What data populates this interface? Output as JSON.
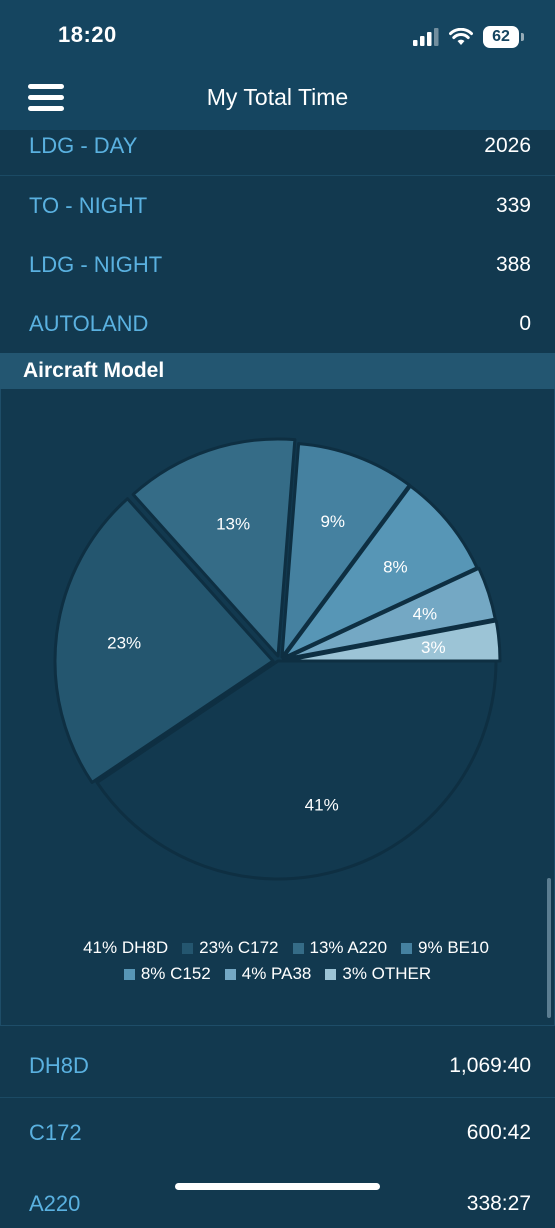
{
  "status_bar": {
    "time": "18:20",
    "battery": "62"
  },
  "nav": {
    "title": "My Total Time"
  },
  "stats": [
    {
      "label": "LDG - DAY",
      "value": "2026"
    },
    {
      "label": "TO - NIGHT",
      "value": "339"
    },
    {
      "label": "LDG - NIGHT",
      "value": "388"
    },
    {
      "label": "AUTOLAND",
      "value": "0"
    }
  ],
  "section": {
    "title": "Aircraft Model"
  },
  "chart_data": {
    "type": "pie",
    "slices": [
      {
        "label": "41%",
        "legend": "41% DH8D",
        "value": 41,
        "color": "#12394f"
      },
      {
        "label": "23%",
        "legend": "23% C172",
        "value": 23,
        "color": "#24566f"
      },
      {
        "label": "13%",
        "legend": "13% A220",
        "value": 13,
        "color": "#356c87"
      },
      {
        "label": "9%",
        "legend": "9% BE10",
        "value": 9,
        "color": "#4581a0"
      },
      {
        "label": "8%",
        "legend": "8% C152",
        "value": 8,
        "color": "#5796b6"
      },
      {
        "label": "4%",
        "legend": "4% PA38",
        "value": 4,
        "color": "#74a8c4"
      },
      {
        "label": "3%",
        "legend": "3% OTHER",
        "value": 3,
        "color": "#9cc4d6"
      }
    ],
    "legend_position": "bottom"
  },
  "models": [
    {
      "label": "DH8D",
      "value": "1,069:40"
    },
    {
      "label": "C172",
      "value": "600:42"
    },
    {
      "label": "A220",
      "value": "338:27"
    }
  ]
}
